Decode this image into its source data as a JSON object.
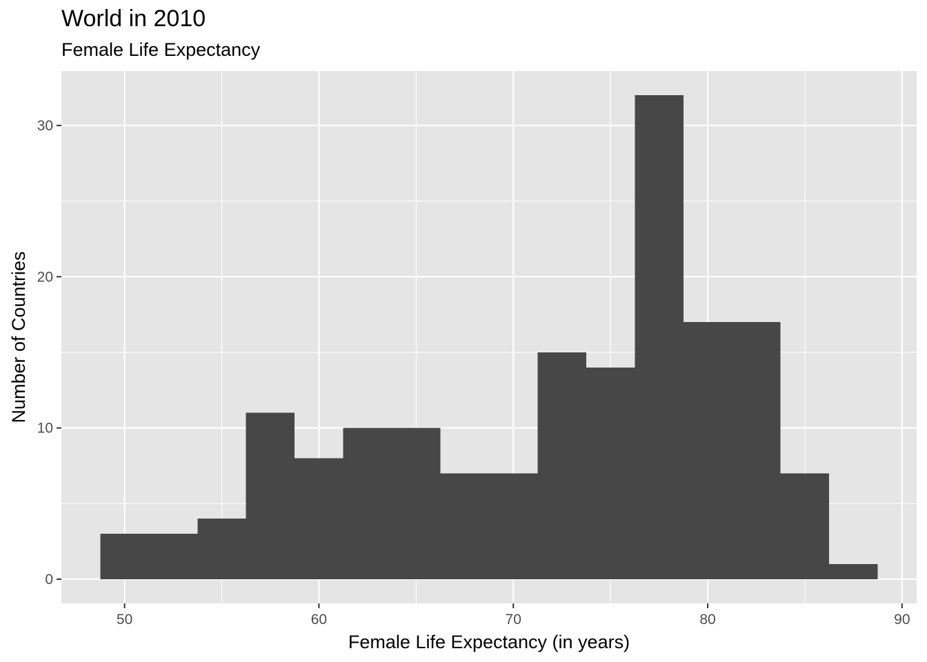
{
  "chart_data": {
    "type": "bar",
    "subtype": "histogram",
    "title": "World in 2010",
    "subtitle": "Female Life Expectancy",
    "xlabel": "Female Life Expectancy (in years)",
    "ylabel": "Number of Countries",
    "bin_width": 2.5,
    "bins": [
      {
        "x0": 48.75,
        "x1": 51.25,
        "count": 3
      },
      {
        "x0": 51.25,
        "x1": 53.75,
        "count": 3
      },
      {
        "x0": 53.75,
        "x1": 56.25,
        "count": 4
      },
      {
        "x0": 56.25,
        "x1": 58.75,
        "count": 11
      },
      {
        "x0": 58.75,
        "x1": 61.25,
        "count": 8
      },
      {
        "x0": 61.25,
        "x1": 63.75,
        "count": 10
      },
      {
        "x0": 63.75,
        "x1": 66.25,
        "count": 10
      },
      {
        "x0": 66.25,
        "x1": 68.75,
        "count": 7
      },
      {
        "x0": 68.75,
        "x1": 71.25,
        "count": 7
      },
      {
        "x0": 71.25,
        "x1": 73.75,
        "count": 15
      },
      {
        "x0": 73.75,
        "x1": 76.25,
        "count": 14
      },
      {
        "x0": 76.25,
        "x1": 78.75,
        "count": 32
      },
      {
        "x0": 78.75,
        "x1": 81.25,
        "count": 17
      },
      {
        "x0": 81.25,
        "x1": 83.75,
        "count": 17
      },
      {
        "x0": 83.75,
        "x1": 86.25,
        "count": 7
      },
      {
        "x0": 86.25,
        "x1": 88.75,
        "count": 1
      }
    ],
    "xlim": [
      46.75,
      90.75
    ],
    "ylim": [
      -1.6,
      33.6
    ],
    "x_ticks": [
      50,
      60,
      70,
      80,
      90
    ],
    "y_ticks": [
      0,
      10,
      20,
      30
    ],
    "grid": true,
    "colors": {
      "panel_background": "#e5e5e5",
      "grid": "#ffffff",
      "bar_fill": "#474747",
      "tick_label": "#4d4d4d"
    }
  }
}
